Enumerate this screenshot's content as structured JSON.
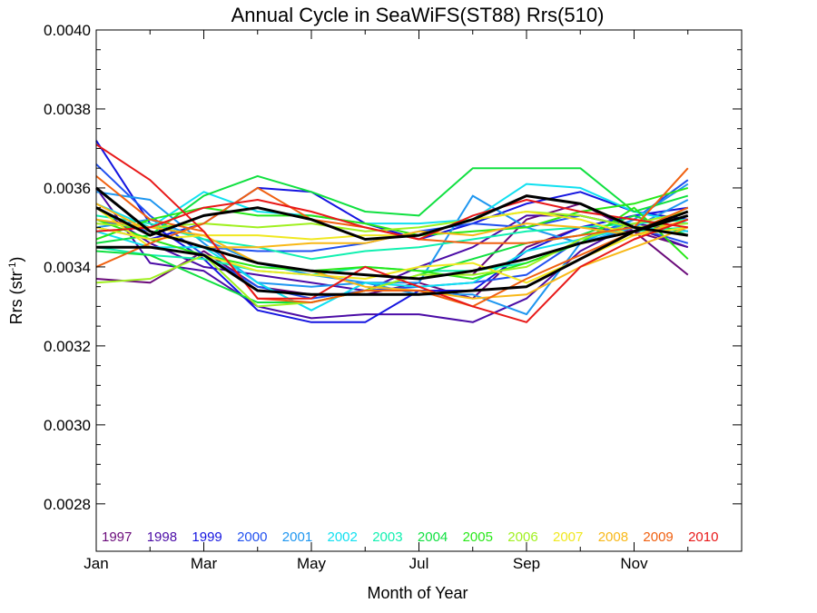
{
  "chart_data": {
    "type": "line",
    "title": "Annual Cycle in SeaWiFS(ST88) Rrs(510)",
    "xlabel": "Month of Year",
    "ylabel_main": "Rrs (str",
    "ylabel_sup": "-1",
    "ylabel_end": ")",
    "x": [
      1,
      2,
      3,
      4,
      5,
      6,
      7,
      8,
      9,
      10,
      11,
      12
    ],
    "xlim": [
      1,
      13
    ],
    "ylim": [
      0.00268,
      0.004
    ],
    "xticks": [
      {
        "v": 1,
        "label": "Jan"
      },
      {
        "v": 3,
        "label": "Mar"
      },
      {
        "v": 5,
        "label": "May"
      },
      {
        "v": 7,
        "label": "Jul"
      },
      {
        "v": 9,
        "label": "Sep"
      },
      {
        "v": 11,
        "label": "Nov"
      }
    ],
    "yticks": [
      {
        "v": 0.0028,
        "label": "0.0028"
      },
      {
        "v": 0.003,
        "label": "0.0030"
      },
      {
        "v": 0.0032,
        "label": "0.0032"
      },
      {
        "v": 0.0034,
        "label": "0.0034"
      },
      {
        "v": 0.0036,
        "label": "0.0036"
      },
      {
        "v": 0.0038,
        "label": "0.0038"
      },
      {
        "v": 0.004,
        "label": "0.0040"
      }
    ],
    "legend_placement": "bottom",
    "series": [
      {
        "name": "1997",
        "color": "#6a0a7a",
        "values": [
          null,
          null,
          null,
          null,
          null,
          null,
          null,
          0.00338,
          0.00352,
          0.00356,
          0.00349,
          0.00338
        ]
      },
      {
        "name": "1997",
        "color": "#6a0a7a",
        "values": [
          0.00337,
          0.00336,
          0.00344,
          0.00335,
          0.00333,
          0.00333,
          0.00336,
          0.00332,
          0.00345,
          0.0035,
          0.00349,
          0.00345
        ]
      },
      {
        "name": "1998",
        "color": "#4b0ca6",
        "values": [
          0.0036,
          0.00341,
          0.00339,
          0.0033,
          0.00327,
          0.00328,
          0.00328,
          0.00326,
          0.00332,
          0.00344,
          0.00351,
          0.00349
        ]
      },
      {
        "name": "1998",
        "color": "#4b0ca6",
        "values": [
          0.00355,
          0.00346,
          0.0034,
          0.00338,
          0.00336,
          0.00334,
          0.0034,
          0.00345,
          0.00353,
          0.00353,
          0.0035,
          0.00345
        ]
      },
      {
        "name": "1999",
        "color": "#1414e0",
        "values": [
          0.00372,
          0.00351,
          0.00342,
          0.00329,
          0.00326,
          0.00326,
          0.00334,
          0.00334,
          0.00344,
          0.0035,
          0.00353,
          0.00355
        ]
      },
      {
        "name": "1999",
        "color": "#1414e0",
        "values": [
          0.0035,
          0.00347,
          0.00351,
          0.0036,
          0.00359,
          0.00351,
          0.00347,
          0.00351,
          0.00356,
          0.00359,
          0.00354,
          0.00352
        ]
      },
      {
        "name": "2000",
        "color": "#2050f0",
        "values": [
          0.00366,
          0.00353,
          0.00343,
          0.00335,
          0.00332,
          0.00334,
          0.00335,
          0.00336,
          0.00338,
          0.00347,
          0.00352,
          0.00362
        ]
      },
      {
        "name": "2000",
        "color": "#2050f0",
        "values": [
          0.00352,
          0.00349,
          0.00345,
          0.00344,
          0.00344,
          0.00346,
          0.00349,
          0.00351,
          0.0035,
          0.00353,
          0.0035,
          0.00346
        ]
      },
      {
        "name": "2001",
        "color": "#1e96f0",
        "values": [
          0.00359,
          0.00357,
          0.00346,
          0.00336,
          0.00335,
          0.00336,
          0.00336,
          0.00358,
          0.0035,
          0.00346,
          0.0035,
          0.00357
        ]
      },
      {
        "name": "2001",
        "color": "#1e96f0",
        "values": [
          0.0035,
          0.00352,
          0.00347,
          0.00341,
          0.00338,
          0.00336,
          0.00333,
          0.00333,
          0.00328,
          0.00346,
          0.00352,
          0.00361
        ]
      },
      {
        "name": "2002",
        "color": "#10e0f0",
        "values": [
          0.00356,
          0.0035,
          0.00359,
          0.00354,
          0.00353,
          0.00351,
          0.00351,
          0.00352,
          0.00361,
          0.0036,
          0.00354,
          0.00351
        ]
      },
      {
        "name": "2002",
        "color": "#10e0f0",
        "values": [
          0.00349,
          0.00345,
          0.00345,
          0.00336,
          0.00329,
          0.00336,
          0.00335,
          0.00336,
          0.00344,
          0.00347,
          0.0035,
          0.00349
        ]
      },
      {
        "name": "2003",
        "color": "#10f0b0",
        "values": [
          0.00353,
          0.00351,
          0.00347,
          0.00345,
          0.00342,
          0.00344,
          0.00345,
          0.00347,
          0.00349,
          0.0035,
          0.00351,
          0.00352
        ]
      },
      {
        "name": "2003",
        "color": "#10f0b0",
        "values": [
          0.00345,
          0.00343,
          0.00342,
          0.00339,
          0.00338,
          0.0034,
          0.00339,
          0.00339,
          0.00341,
          0.00346,
          0.00349,
          0.0035
        ]
      },
      {
        "name": "2004",
        "color": "#10e040",
        "values": [
          0.00346,
          0.00348,
          0.00358,
          0.00363,
          0.00359,
          0.00354,
          0.00353,
          0.00365,
          0.00365,
          0.00365,
          0.00354,
          0.00358
        ]
      },
      {
        "name": "2004",
        "color": "#10e040",
        "values": [
          0.00344,
          0.00343,
          0.00337,
          0.00331,
          0.00331,
          0.00334,
          0.00338,
          0.00342,
          0.00346,
          0.00348,
          0.00353,
          0.00348
        ]
      },
      {
        "name": "2005",
        "color": "#28e818",
        "values": [
          0.00352,
          0.00347,
          0.00343,
          0.0034,
          0.00339,
          0.0034,
          0.00339,
          0.00337,
          0.00341,
          0.00346,
          0.00355,
          0.00342
        ]
      },
      {
        "name": "2005",
        "color": "#28e818",
        "values": [
          0.00347,
          0.00352,
          0.00355,
          0.00353,
          0.00353,
          0.00351,
          0.00348,
          0.00349,
          0.0035,
          0.00354,
          0.00356,
          0.0036
        ]
      },
      {
        "name": "2006",
        "color": "#a0f020",
        "values": [
          0.00336,
          0.00337,
          0.00343,
          0.0033,
          0.00331,
          0.00334,
          0.00338,
          0.00338,
          0.0034,
          0.00347,
          0.00351,
          0.00354
        ]
      },
      {
        "name": "2006",
        "color": "#a0f020",
        "values": [
          0.00351,
          0.0035,
          0.00351,
          0.0035,
          0.00351,
          0.00349,
          0.0035,
          0.00352,
          0.00354,
          0.00353,
          0.0035,
          0.00351
        ]
      },
      {
        "name": "2007",
        "color": "#f0e820",
        "values": [
          0.00355,
          0.00345,
          0.00343,
          0.00339,
          0.00338,
          0.00337,
          0.0034,
          0.00341,
          0.00336,
          0.00342,
          0.00348,
          0.00352
        ]
      },
      {
        "name": "2007",
        "color": "#f0e820",
        "values": [
          0.0035,
          0.00347,
          0.00348,
          0.00348,
          0.00347,
          0.00348,
          0.00348,
          0.00352,
          0.00354,
          0.00352,
          0.00348,
          0.0035
        ]
      },
      {
        "name": "2008",
        "color": "#f8b818",
        "values": [
          0.00352,
          0.0035,
          0.00348,
          0.00341,
          0.00339,
          0.00335,
          0.00334,
          0.00332,
          0.00333,
          0.0034,
          0.00345,
          0.0035
        ]
      },
      {
        "name": "2008",
        "color": "#f8b818",
        "values": [
          0.00356,
          0.00349,
          0.00345,
          0.00345,
          0.00346,
          0.00346,
          0.00349,
          0.00348,
          0.00351,
          0.0035,
          0.00348,
          0.00352
        ]
      },
      {
        "name": "2009",
        "color": "#f06010",
        "values": [
          0.0034,
          0.00346,
          0.00351,
          0.0036,
          0.00352,
          0.0035,
          0.00347,
          0.00346,
          0.00346,
          0.00348,
          0.0035,
          0.00365
        ]
      },
      {
        "name": "2009",
        "color": "#f06010",
        "values": [
          0.00363,
          0.00352,
          0.00349,
          0.00332,
          0.00331,
          0.00334,
          0.00334,
          0.0033,
          0.00337,
          0.00343,
          0.00349,
          0.00355
        ]
      },
      {
        "name": "2010",
        "color": "#e81818",
        "values": [
          0.00371,
          0.00362,
          0.00349,
          0.00332,
          0.00332,
          0.0034,
          0.00335,
          0.0033,
          0.00326,
          0.0034,
          0.00347,
          0.00352
        ]
      },
      {
        "name": "2010",
        "color": "#e81818",
        "values": [
          0.00349,
          0.0035,
          0.00355,
          0.00357,
          0.00354,
          0.0035,
          0.00347,
          0.00353,
          0.00357,
          0.00354,
          0.00352,
          0.0035
        ]
      }
    ],
    "mean_lines": [
      {
        "color": "#000000",
        "values": [
          0.0036,
          0.00349,
          0.00345,
          0.00341,
          0.00339,
          0.00338,
          0.00337,
          0.00339,
          0.00342,
          0.00346,
          0.00349,
          0.00354
        ]
      },
      {
        "color": "#000000",
        "values": [
          0.00355,
          0.00348,
          0.00353,
          0.00355,
          0.00352,
          0.00347,
          0.00348,
          0.00352,
          0.00358,
          0.00356,
          0.0035,
          0.00348
        ]
      },
      {
        "color": "#000000",
        "values": [
          0.00345,
          0.00345,
          0.00343,
          0.00334,
          0.00333,
          0.00333,
          0.00333,
          0.00334,
          0.00335,
          0.00342,
          0.00349,
          0.00353
        ]
      }
    ],
    "legend": [
      {
        "label": "1997",
        "color": "#6a0a7a"
      },
      {
        "label": "1998",
        "color": "#4b0ca6"
      },
      {
        "label": "1999",
        "color": "#1414e0"
      },
      {
        "label": "2000",
        "color": "#2050f0"
      },
      {
        "label": "2001",
        "color": "#1e96f0"
      },
      {
        "label": "2002",
        "color": "#10e0f0"
      },
      {
        "label": "2003",
        "color": "#10f0b0"
      },
      {
        "label": "2004",
        "color": "#10e040"
      },
      {
        "label": "2005",
        "color": "#28e818"
      },
      {
        "label": "2006",
        "color": "#a0f020"
      },
      {
        "label": "2007",
        "color": "#f0e820"
      },
      {
        "label": "2008",
        "color": "#f8b818"
      },
      {
        "label": "2009",
        "color": "#f06010"
      },
      {
        "label": "2010",
        "color": "#e81818"
      }
    ]
  }
}
